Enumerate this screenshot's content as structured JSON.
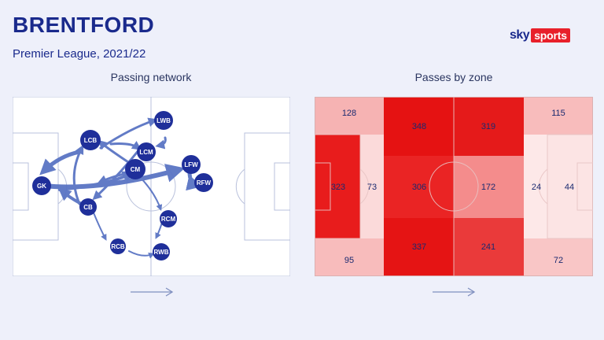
{
  "header": {
    "title": "BRENTFORD",
    "subtitle": "Premier League, 2021/22"
  },
  "brand": {
    "sky": "sky",
    "sports": "sports",
    "accent": "#e8202a",
    "primary": "#1a2a8c"
  },
  "passing_network": {
    "label": "Passing network",
    "nodes": [
      {
        "id": "GK",
        "label": "GK"
      },
      {
        "id": "LCB",
        "label": "LCB"
      },
      {
        "id": "CB",
        "label": "CB"
      },
      {
        "id": "RCB",
        "label": "RCB"
      },
      {
        "id": "LWB",
        "label": "LWB"
      },
      {
        "id": "LCM",
        "label": "LCM"
      },
      {
        "id": "CM",
        "label": "CM"
      },
      {
        "id": "LFW",
        "label": "LFW"
      },
      {
        "id": "RFW",
        "label": "RFW"
      },
      {
        "id": "RCM",
        "label": "RCM"
      },
      {
        "id": "RWB",
        "label": "RWB"
      }
    ],
    "direction_icon": "arrow-right-icon"
  },
  "passes_by_zone": {
    "label": "Passes by zone",
    "zones": {
      "top_left": "128",
      "top_mid_left": "348",
      "top_mid_right": "319",
      "top_right": "115",
      "mid_left_box": "323",
      "mid_left_area": "73",
      "mid_center_left": "306",
      "mid_center_right": "172",
      "mid_right_area": "24",
      "mid_right_box": "44",
      "bottom_left": "95",
      "bottom_mid_left": "337",
      "bottom_mid_right": "241",
      "bottom_right": "72"
    },
    "direction_icon": "arrow-right-icon"
  }
}
